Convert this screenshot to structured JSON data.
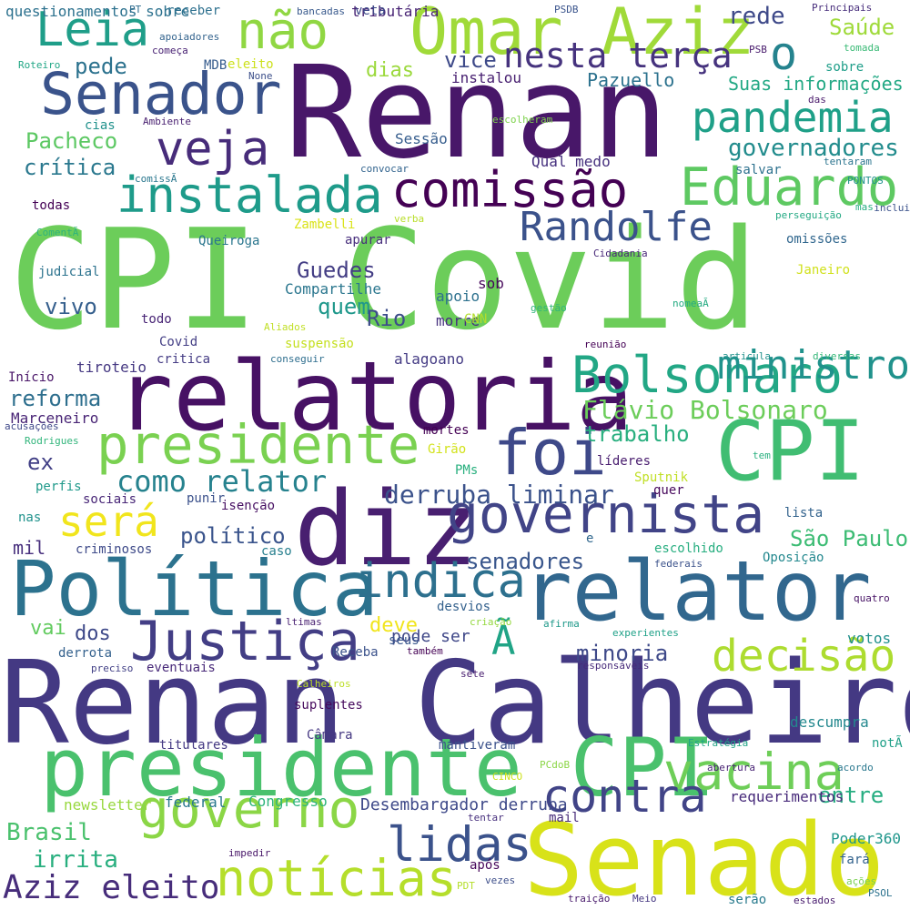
{
  "words": [
    {
      "text": "CPI Covid",
      "color": "#6ccd5a"
    },
    {
      "text": "Renan Calheiros",
      "color": "#443983"
    },
    {
      "text": "Renan",
      "color": "#481769"
    },
    {
      "text": "relatoria",
      "color": "#471164"
    },
    {
      "text": "presidente CPI",
      "color": "#4ac16d"
    },
    {
      "text": "Senado",
      "color": "#d8e219"
    },
    {
      "text": "relator",
      "color": "#31678e"
    },
    {
      "text": "diz",
      "color": "#481f70"
    },
    {
      "text": "Política",
      "color": "#2c728e"
    },
    {
      "text": "CPI",
      "color": "#40bd72"
    },
    {
      "text": "Omar Aziz",
      "color": "#a0da39"
    },
    {
      "text": "Senador",
      "color": "#3a538b"
    },
    {
      "text": "presidente",
      "color": "#7ad151"
    },
    {
      "text": "governista",
      "color": "#414487"
    },
    {
      "text": "Bolsonaro",
      "color": "#22a785"
    },
    {
      "text": "foi",
      "color": "#3e4989"
    },
    {
      "text": "pandemia",
      "color": "#1fa088"
    },
    {
      "text": "comissão",
      "color": "#440154"
    },
    {
      "text": "instalada",
      "color": "#1e9b8a"
    },
    {
      "text": "Eduardo",
      "color": "#5ec962"
    },
    {
      "text": "Leia",
      "color": "#1f9e89"
    },
    {
      "text": "não",
      "color": "#90d743"
    },
    {
      "text": "veja",
      "color": "#472c7a"
    },
    {
      "text": "Justiça",
      "color": "#433e85"
    },
    {
      "text": "indica",
      "color": "#2d708e"
    },
    {
      "text": "governo",
      "color": "#8bd646"
    },
    {
      "text": "decisão",
      "color": "#addc30"
    },
    {
      "text": "vacina",
      "color": "#6ece58"
    },
    {
      "text": "notícias",
      "color": "#b5de2b"
    },
    {
      "text": "lidas",
      "color": "#3b528b"
    },
    {
      "text": "contra",
      "color": "#414487"
    },
    {
      "text": "Randolfe",
      "color": "#3b528b"
    },
    {
      "text": "ministro",
      "color": "#20928c"
    },
    {
      "text": "será",
      "color": "#f1e51d"
    },
    {
      "text": "nesta terça",
      "color": "#46337e"
    },
    {
      "text": "o",
      "color": "#25838e"
    },
    {
      "text": "Aziz eleito",
      "color": "#472d7b"
    },
    {
      "text": "Flávio Bolsonaro",
      "color": "#6ccd5a"
    },
    {
      "text": "como relator",
      "color": "#26828e"
    },
    {
      "text": "derruba liminar",
      "color": "#3b528b"
    },
    {
      "text": "Ã",
      "color": "#20a486"
    },
    {
      "text": "Saúde",
      "color": "#9fda3a"
    },
    {
      "text": "rede",
      "color": "#3e4989"
    },
    {
      "text": "governadores",
      "color": "#228c8d"
    },
    {
      "text": "pede",
      "color": "#2c728e"
    },
    {
      "text": "vice",
      "color": "#3e4a89"
    },
    {
      "text": "Pacheco",
      "color": "#5cc863"
    },
    {
      "text": "crítica",
      "color": "#2a788e"
    },
    {
      "text": "Suas informações",
      "color": "#22a884"
    },
    {
      "text": "Pazuello",
      "color": "#2c728e"
    },
    {
      "text": "trabalho",
      "color": "#29af7f"
    },
    {
      "text": "minoria",
      "color": "#3e4989"
    },
    {
      "text": "senadores",
      "color": "#39568c"
    },
    {
      "text": "político",
      "color": "#3a548c"
    },
    {
      "text": "São Paulo",
      "color": "#3dbc74"
    },
    {
      "text": "Brasil",
      "color": "#4ac16d"
    },
    {
      "text": "irrita",
      "color": "#29af7f"
    },
    {
      "text": "Guedes",
      "color": "#433d84"
    },
    {
      "text": "quem",
      "color": "#1f988b"
    },
    {
      "text": "Rio",
      "color": "#3d4d8a"
    },
    {
      "text": "vivo",
      "color": "#355f8d"
    },
    {
      "text": "reforma",
      "color": "#2e6f8e"
    },
    {
      "text": "ex",
      "color": "#424086"
    },
    {
      "text": "mil",
      "color": "#472f7d"
    },
    {
      "text": "dias",
      "color": "#9bd93c"
    },
    {
      "text": "entre",
      "color": "#26ad81"
    },
    {
      "text": "deve",
      "color": "#f1e51d"
    },
    {
      "text": "vai",
      "color": "#62cb5f"
    },
    {
      "text": "dos",
      "color": "#3e4989"
    },
    {
      "text": "pode ser",
      "color": "#3f4788"
    },
    {
      "text": "Desembargador derruba",
      "color": "#3e4989"
    },
    {
      "text": "Congresso",
      "color": "#2fb47c"
    },
    {
      "text": "federal",
      "color": "#2a788e"
    },
    {
      "text": "newsletter",
      "color": "#98d83e"
    },
    {
      "text": "requerimentos",
      "color": "#472a7a"
    },
    {
      "text": "Poder360",
      "color": "#1f968b"
    },
    {
      "text": "descumpra",
      "color": "#23888e"
    },
    {
      "text": "votos",
      "color": "#21908d"
    },
    {
      "text": "questionamentos sobre",
      "color": "#2c718e"
    },
    {
      "text": "tributária",
      "color": "#482374"
    },
    {
      "text": "instalou",
      "color": "#482071"
    },
    {
      "text": "Sessão",
      "color": "#365d8d"
    },
    {
      "text": "Qual medo",
      "color": "#46307e"
    },
    {
      "text": "Marceneiro",
      "color": "#482475"
    },
    {
      "text": "tiroteio",
      "color": "#453882"
    },
    {
      "text": "alagoano",
      "color": "#443b84"
    },
    {
      "text": "Compartilhe",
      "color": "#2a768e"
    },
    {
      "text": "apoio",
      "color": "#2d718e"
    },
    {
      "text": "sob",
      "color": "#46075a"
    },
    {
      "text": "morre",
      "color": "#46307e"
    },
    {
      "text": "CNN",
      "color": "#b2dd2d"
    },
    {
      "text": "suspensão",
      "color": "#c5e021"
    },
    {
      "text": "Covid",
      "color": "#433e85"
    },
    {
      "text": "critica",
      "color": "#443b84"
    },
    {
      "text": "todo",
      "color": "#482475"
    },
    {
      "text": "judicial",
      "color": "#2c738e"
    },
    {
      "text": "Início",
      "color": "#481467"
    },
    {
      "text": "omissões",
      "color": "#31678e"
    },
    {
      "text": "apurar",
      "color": "#472e7c"
    },
    {
      "text": "todas",
      "color": "#440154"
    },
    {
      "text": "Zambelli",
      "color": "#dae319"
    },
    {
      "text": "verba",
      "color": "#b8de29"
    },
    {
      "text": "Queiroga",
      "color": "#2a768e"
    },
    {
      "text": "Aliados",
      "color": "#c0df25"
    },
    {
      "text": "conseguir",
      "color": "#2e6e8e"
    },
    {
      "text": "ComentÃ",
      "color": "#2fb47c"
    },
    {
      "text": "Cidadania",
      "color": "#482878"
    },
    {
      "text": "gestão",
      "color": "#31b57b"
    },
    {
      "text": "nomeaÃ",
      "color": "#25ab82"
    },
    {
      "text": "reunião",
      "color": "#440154"
    },
    {
      "text": "Janeiro",
      "color": "#d0e11c"
    },
    {
      "text": "articula",
      "color": "#21918c"
    },
    {
      "text": "diversas",
      "color": "#35b779"
    },
    {
      "text": "receber",
      "color": "#2d708e"
    },
    {
      "text": "bancadas",
      "color": "#38598c"
    },
    {
      "text": "veta",
      "color": "#3e4a89"
    },
    {
      "text": "PSDB",
      "color": "#3a548c"
    },
    {
      "text": "Principais",
      "color": "#472d7b"
    },
    {
      "text": "PSB",
      "color": "#481a6c"
    },
    {
      "text": "tomada",
      "color": "#3aba76"
    },
    {
      "text": "sobre",
      "color": "#1f9e89"
    },
    {
      "text": "das",
      "color": "#48186a"
    },
    {
      "text": "PT",
      "color": "#2f6c8e"
    },
    {
      "text": "apoiadores",
      "color": "#33638d"
    },
    {
      "text": "começa",
      "color": "#482173"
    },
    {
      "text": "MDB",
      "color": "#365c8d"
    },
    {
      "text": "eleito",
      "color": "#cde11d"
    },
    {
      "text": "None",
      "color": "#3c4f8a"
    },
    {
      "text": "Roteiro",
      "color": "#21a685"
    },
    {
      "text": "cias",
      "color": "#21918c"
    },
    {
      "text": "Ambiente",
      "color": "#481f70"
    },
    {
      "text": "escolheram",
      "color": "#7fd34e"
    },
    {
      "text": "convocar",
      "color": "#32648e"
    },
    {
      "text": "comissÃ",
      "color": "#2a778e"
    },
    {
      "text": "tentaram",
      "color": "#2b748e"
    },
    {
      "text": "PONTOS",
      "color": "#21918c"
    },
    {
      "text": "salvar",
      "color": "#2d718e"
    },
    {
      "text": "perseguição",
      "color": "#23a983"
    },
    {
      "text": "mas",
      "color": "#26ad81"
    },
    {
      "text": "inclui",
      "color": "#3b528b"
    },
    {
      "text": "acusações",
      "color": "#3f4889"
    },
    {
      "text": "Rodrigues",
      "color": "#31b57b"
    },
    {
      "text": "perfis",
      "color": "#1f998a"
    },
    {
      "text": "Girão",
      "color": "#d2e21b"
    },
    {
      "text": "PMs",
      "color": "#2ab07f"
    },
    {
      "text": "mortes",
      "color": "#440154"
    },
    {
      "text": "líderes",
      "color": "#481c6e"
    },
    {
      "text": "tem",
      "color": "#2ab07f"
    },
    {
      "text": "Sputnik",
      "color": "#c0df25"
    },
    {
      "text": "sociais",
      "color": "#482677"
    },
    {
      "text": "punir",
      "color": "#3b518b"
    },
    {
      "text": "isenção",
      "color": "#471063"
    },
    {
      "text": "quer",
      "color": "#46085c"
    },
    {
      "text": "lista",
      "color": "#33638d"
    },
    {
      "text": "nas",
      "color": "#20928c"
    },
    {
      "text": "criminosos",
      "color": "#3e4a89"
    },
    {
      "text": "caso",
      "color": "#277f8e"
    },
    {
      "text": "e",
      "color": "#31678e"
    },
    {
      "text": "escolhido",
      "color": "#28ae80"
    },
    {
      "text": "federais",
      "color": "#3b528b"
    },
    {
      "text": "Oposição",
      "color": "#23888e"
    },
    {
      "text": "desvios",
      "color": "#34618d"
    },
    {
      "text": "ltimas",
      "color": "#482071"
    },
    {
      "text": "criação",
      "color": "#95d840"
    },
    {
      "text": "afirma",
      "color": "#1f998a"
    },
    {
      "text": "quatro",
      "color": "#471365"
    },
    {
      "text": "seus",
      "color": "#39568c"
    },
    {
      "text": "também",
      "color": "#440154"
    },
    {
      "text": "experientes",
      "color": "#1fa188"
    },
    {
      "text": "derrota",
      "color": "#34618d"
    },
    {
      "text": "Receba",
      "color": "#3b528b"
    },
    {
      "text": "preciso",
      "color": "#424086"
    },
    {
      "text": "eventuais",
      "color": "#482979"
    },
    {
      "text": "responsáveis",
      "color": "#472a7a"
    },
    {
      "text": "Calheiros",
      "color": "#bddf26"
    },
    {
      "text": "sete",
      "color": "#481d6f"
    },
    {
      "text": "suplentes",
      "color": "#460a5d"
    },
    {
      "text": "Câmara",
      "color": "#453882"
    },
    {
      "text": "titulares",
      "color": "#443983"
    },
    {
      "text": "mantiveram",
      "color": "#3b528b"
    },
    {
      "text": "Estratégia",
      "color": "#20a486"
    },
    {
      "text": "notÃ",
      "color": "#1fa088"
    },
    {
      "text": "CINCO",
      "color": "#cde11d"
    },
    {
      "text": "PCdoB",
      "color": "#8bd646"
    },
    {
      "text": "acordo",
      "color": "#2a788e"
    },
    {
      "text": "abertura",
      "color": "#482374"
    },
    {
      "text": "tentar",
      "color": "#472f7d"
    },
    {
      "text": "mail",
      "color": "#472c7a"
    },
    {
      "text": "impedir",
      "color": "#481668"
    },
    {
      "text": "após",
      "color": "#46075a"
    },
    {
      "text": "fará",
      "color": "#33638d"
    },
    {
      "text": "PDT",
      "color": "#b5de2b"
    },
    {
      "text": "vezes",
      "color": "#3d4e8a"
    },
    {
      "text": "ações",
      "color": "#7ad151"
    },
    {
      "text": "traição",
      "color": "#481a6c"
    },
    {
      "text": "Meio",
      "color": "#453781"
    },
    {
      "text": "serão",
      "color": "#297b8e"
    },
    {
      "text": "estados",
      "color": "#481c6e"
    },
    {
      "text": "PSOL",
      "color": "#2c728e"
    }
  ]
}
